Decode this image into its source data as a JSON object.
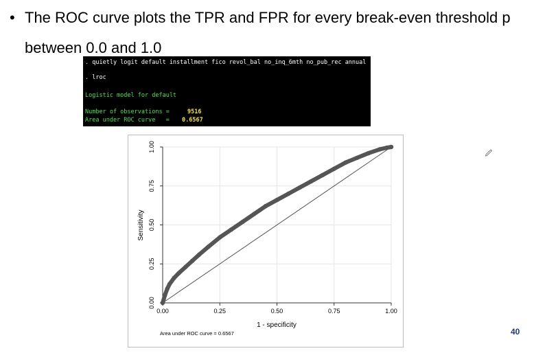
{
  "slide": {
    "bullet": "•",
    "text": "The ROC curve plots the TPR and FPR for every break-even threshold p between 0.0 and 1.0",
    "page_number": "40"
  },
  "terminal": {
    "line1": ". quietly logit default installment fico revol_bal no_inq_6mth no_pub_rec annual",
    "line2": ". lroc",
    "line3": "Logistic model for default",
    "obs_label": "Number of observations =",
    "obs_value": "9516",
    "auc_label": "Area under ROC curve   =",
    "auc_value": "0.6567"
  },
  "chart_data": {
    "type": "line",
    "title": "",
    "xlabel": "1 - specificity",
    "ylabel": "Sensitivity",
    "xlim": [
      0,
      1
    ],
    "ylim": [
      0,
      1
    ],
    "x_ticks": [
      "0.00",
      "0.25",
      "0.50",
      "0.75",
      "1.00"
    ],
    "y_ticks": [
      "0.00",
      "0.25",
      "0.50",
      "0.75",
      "1.00"
    ],
    "note": "Area under ROC curve = 0.6567",
    "grid": true,
    "series": [
      {
        "x": [
          0,
          0.01,
          0.02,
          0.03,
          0.05,
          0.07,
          0.1,
          0.13,
          0.16,
          0.2,
          0.25,
          0.3,
          0.35,
          0.4,
          0.45,
          0.5,
          0.55,
          0.6,
          0.65,
          0.7,
          0.75,
          0.8,
          0.85,
          0.9,
          0.95,
          0.98,
          1.0
        ],
        "y": [
          0,
          0.05,
          0.09,
          0.12,
          0.16,
          0.19,
          0.23,
          0.27,
          0.31,
          0.36,
          0.42,
          0.47,
          0.52,
          0.57,
          0.62,
          0.66,
          0.7,
          0.74,
          0.78,
          0.82,
          0.86,
          0.9,
          0.93,
          0.96,
          0.985,
          0.995,
          1.0
        ]
      },
      {
        "x": [
          0,
          1
        ],
        "y": [
          0,
          1
        ]
      }
    ],
    "colors": {
      "curve": "#555555",
      "reference": "#555555",
      "grid": "#e6e6e6"
    }
  }
}
